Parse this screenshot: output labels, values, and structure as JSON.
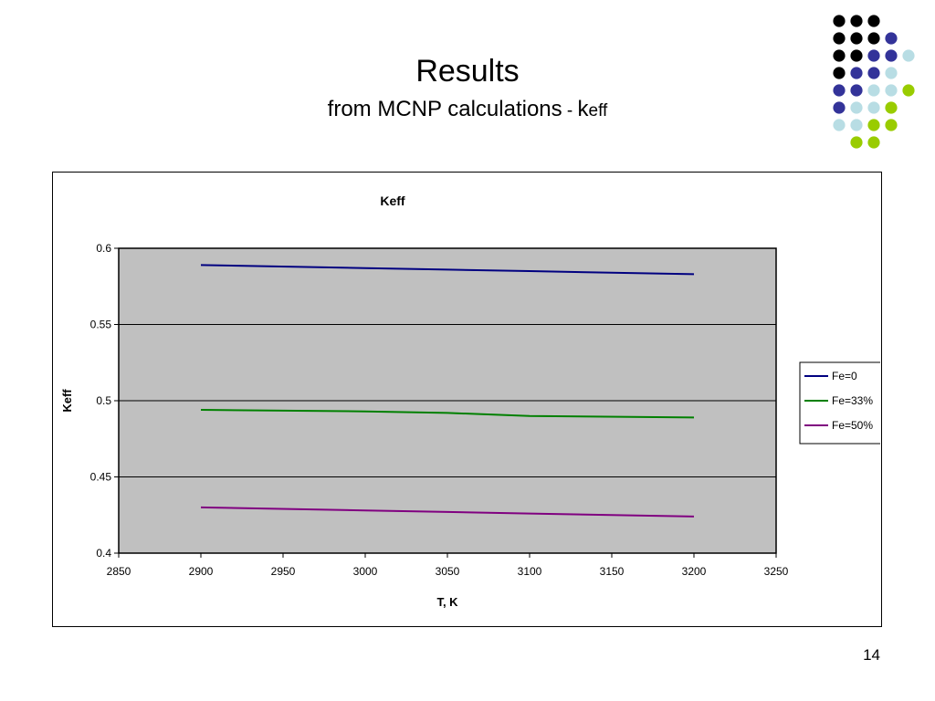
{
  "slide": {
    "title": "Results",
    "subtitle_main": "from MCNP calculations",
    "subtitle_dash": " - ",
    "subtitle_k": "k",
    "subtitle_eff": "eff",
    "page_number": "14"
  },
  "decoration": {
    "dot_colors": {
      "black": "#000000",
      "blue": "#333399",
      "light": "#b8dde4",
      "green": "#99cc00"
    },
    "dot_rows": [
      [
        "black",
        "black",
        "black"
      ],
      [
        "black",
        "black",
        "black",
        "blue"
      ],
      [
        "black",
        "black",
        "blue",
        "blue",
        "light"
      ],
      [
        "black",
        "blue",
        "blue",
        "light"
      ],
      [
        "blue",
        "blue",
        "light",
        "light",
        "green"
      ],
      [
        "blue",
        "light",
        "light",
        "green"
      ],
      [
        "light",
        "light",
        "green",
        "green"
      ],
      [
        "green",
        "green"
      ]
    ]
  },
  "chart_data": {
    "type": "line",
    "title": "Keff",
    "xlabel": "T, K",
    "ylabel": "Keff",
    "xlim": [
      2850,
      3250
    ],
    "ylim": [
      0.4,
      0.6
    ],
    "x_ticks": [
      "2850",
      "2900",
      "2950",
      "3000",
      "3050",
      "3100",
      "3150",
      "3200",
      "3250"
    ],
    "y_ticks": [
      "0.4",
      "0.45",
      "0.5",
      "0.55",
      "0.6"
    ],
    "x": [
      2900,
      3000,
      3050,
      3100,
      3200
    ],
    "series": [
      {
        "name": "Fe=0",
        "color": "#000080",
        "values": [
          0.589,
          0.587,
          0.586,
          0.585,
          0.583
        ]
      },
      {
        "name": "Fe=33%",
        "color": "#008000",
        "values": [
          0.494,
          0.493,
          0.492,
          0.49,
          0.489
        ]
      },
      {
        "name": "Fe=50%",
        "color": "#800080",
        "values": [
          0.43,
          0.428,
          0.427,
          0.426,
          0.424
        ]
      }
    ],
    "plot_background": "#c0c0c0",
    "grid": "horizontal",
    "legend_position": "right"
  }
}
